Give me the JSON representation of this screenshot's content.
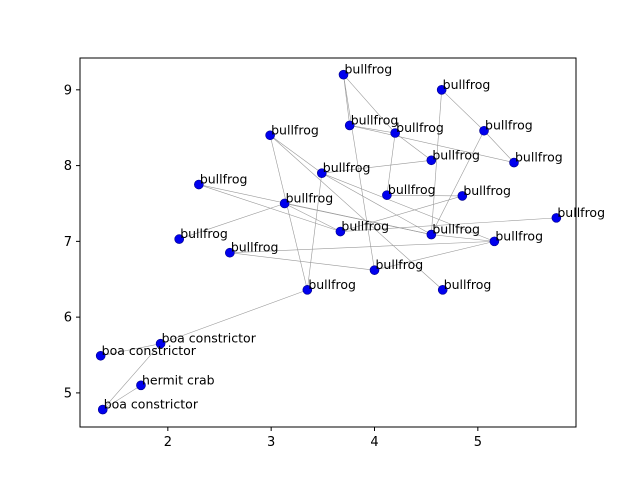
{
  "chart_data": {
    "type": "scatter",
    "title": "",
    "xlabel": "",
    "ylabel": "",
    "xlim": [
      1.15,
      5.95
    ],
    "ylim": [
      4.55,
      9.42
    ],
    "xticks": [
      2,
      3,
      4,
      5
    ],
    "yticks": [
      5,
      6,
      7,
      8,
      9
    ],
    "grid": false,
    "point_color": "#0000ee",
    "edge_color": "#9a9a9a",
    "points": [
      {
        "x": 3.7,
        "y": 9.2,
        "label": "bullfrog"
      },
      {
        "x": 4.65,
        "y": 9.0,
        "label": "bullfrog"
      },
      {
        "x": 3.76,
        "y": 8.53,
        "label": "bullfrog"
      },
      {
        "x": 4.2,
        "y": 8.43,
        "label": "bullfrog"
      },
      {
        "x": 5.06,
        "y": 8.46,
        "label": "bullfrog"
      },
      {
        "x": 2.99,
        "y": 8.4,
        "label": "bullfrog"
      },
      {
        "x": 4.55,
        "y": 8.07,
        "label": "bullfrog"
      },
      {
        "x": 5.35,
        "y": 8.04,
        "label": "bullfrog"
      },
      {
        "x": 3.49,
        "y": 7.9,
        "label": "bullfrog"
      },
      {
        "x": 2.3,
        "y": 7.75,
        "label": "bullfrog"
      },
      {
        "x": 4.12,
        "y": 7.61,
        "label": "bullfrog"
      },
      {
        "x": 4.85,
        "y": 7.6,
        "label": "bullfrog"
      },
      {
        "x": 3.13,
        "y": 7.5,
        "label": "bullfrog"
      },
      {
        "x": 5.76,
        "y": 7.31,
        "label": "bullfrog"
      },
      {
        "x": 3.67,
        "y": 7.13,
        "label": "bullfrog"
      },
      {
        "x": 4.55,
        "y": 7.09,
        "label": "bullfrog"
      },
      {
        "x": 2.11,
        "y": 7.03,
        "label": "bullfrog"
      },
      {
        "x": 5.16,
        "y": 7.0,
        "label": "bullfrog"
      },
      {
        "x": 2.6,
        "y": 6.85,
        "label": "bullfrog"
      },
      {
        "x": 4.0,
        "y": 6.62,
        "label": "bullfrog"
      },
      {
        "x": 3.35,
        "y": 6.36,
        "label": "bullfrog"
      },
      {
        "x": 4.66,
        "y": 6.36,
        "label": "bullfrog"
      },
      {
        "x": 1.93,
        "y": 5.65,
        "label": "boa constrictor"
      },
      {
        "x": 1.35,
        "y": 5.49,
        "label": "boa constrictor"
      },
      {
        "x": 1.74,
        "y": 5.1,
        "label": "hermit crab"
      },
      {
        "x": 1.37,
        "y": 4.78,
        "label": "boa constrictor"
      }
    ],
    "edges": [
      [
        0,
        2
      ],
      [
        0,
        19
      ],
      [
        2,
        3
      ],
      [
        2,
        7
      ],
      [
        3,
        6
      ],
      [
        3,
        10
      ],
      [
        1,
        4
      ],
      [
        1,
        15
      ],
      [
        4,
        7
      ],
      [
        6,
        8
      ],
      [
        8,
        20
      ],
      [
        8,
        15
      ],
      [
        5,
        8
      ],
      [
        5,
        20
      ],
      [
        5,
        21
      ],
      [
        9,
        14
      ],
      [
        12,
        16
      ],
      [
        12,
        15
      ],
      [
        10,
        11
      ],
      [
        11,
        14
      ],
      [
        14,
        13
      ],
      [
        15,
        17
      ],
      [
        15,
        4
      ],
      [
        18,
        19
      ],
      [
        18,
        17
      ],
      [
        19,
        17
      ],
      [
        20,
        22
      ],
      [
        22,
        23
      ],
      [
        22,
        25
      ],
      [
        24,
        25
      ],
      [
        3,
        0
      ],
      [
        8,
        17
      ],
      [
        12,
        14
      ],
      [
        9,
        15
      ]
    ]
  }
}
